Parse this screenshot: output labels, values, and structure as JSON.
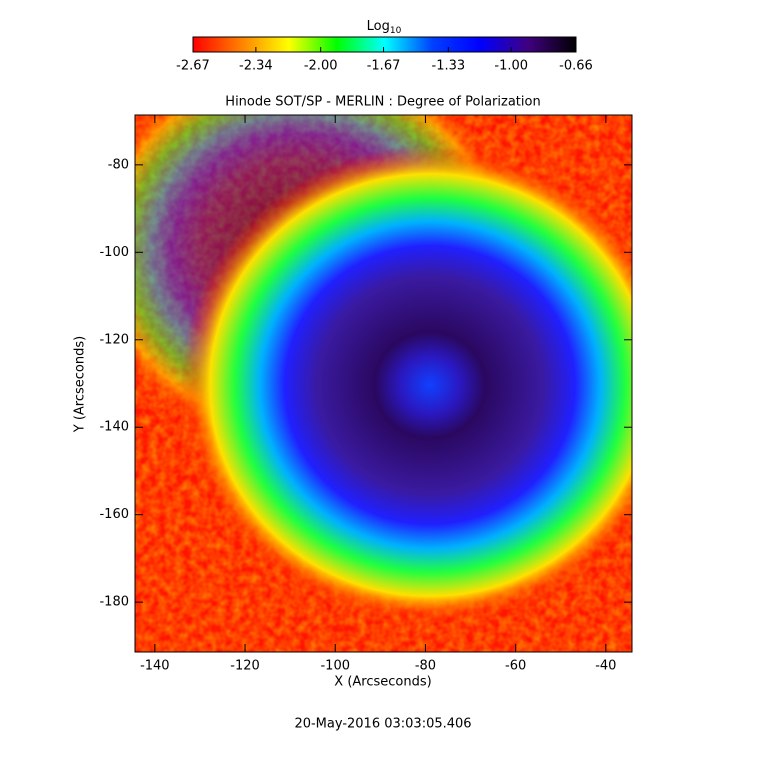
{
  "chart_data": {
    "type": "heatmap",
    "title": "Hinode SOT/SP - MERLIN : Degree of Polarization",
    "x_label": "X (Arcseconds)",
    "y_label": "Y (Arcseconds)",
    "footer": "20-May-2016 03:03:05.406",
    "xlim": [
      -144.4,
      -34.2
    ],
    "xticks": [
      -140,
      -120,
      -100,
      -80,
      -60,
      -40
    ],
    "ylim": [
      -191.4,
      -68.6
    ],
    "yticks": [
      -80,
      -100,
      -120,
      -140,
      -160,
      -180
    ],
    "colorbar_label": "Log",
    "colorbar_label_sub": "10",
    "clim": [
      -2.67,
      -0.66
    ],
    "colorbar_ticks": [
      -2.67,
      -2.34,
      {
        "value": -2,
        "label": "-2.00"
      },
      -1.67,
      -1.33,
      {
        "value": -1,
        "label": "-1.00"
      },
      -0.66
    ],
    "colormap": [
      "#ff0000",
      "#ff8000",
      "#ffff00",
      "#00ff00",
      "#00ffff",
      "#0040ff",
      "#0000ff",
      "#400080",
      "#000000"
    ]
  }
}
